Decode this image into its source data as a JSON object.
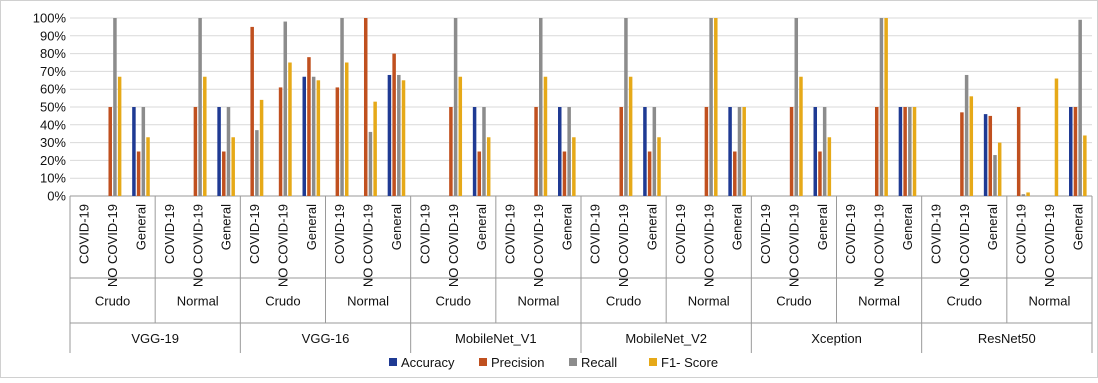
{
  "chart_data": {
    "type": "bar",
    "title": "",
    "xlabel": "",
    "ylabel": "",
    "ylim": [
      0,
      100
    ],
    "y_unit": "%",
    "y_ticks": [
      "0%",
      "10%",
      "20%",
      "30%",
      "40%",
      "50%",
      "60%",
      "70%",
      "80%",
      "90%",
      "100%"
    ],
    "grid": true,
    "legend_position": "bottom",
    "models": [
      "VGG-19",
      "VGG-16",
      "MobileNet_V1",
      "MobileNet_V2",
      "Xception",
      "ResNet50"
    ],
    "preprocessing": [
      "Crudo",
      "Normal"
    ],
    "classes": [
      "COVID-19",
      "NO COVID-19",
      "General"
    ],
    "categories": [
      "VGG-19 | Crudo | COVID-19",
      "VGG-19 | Crudo | NO COVID-19",
      "VGG-19 | Crudo | General",
      "VGG-19 | Normal | COVID-19",
      "VGG-19 | Normal | NO COVID-19",
      "VGG-19 | Normal | General",
      "VGG-16 | Crudo | COVID-19",
      "VGG-16 | Crudo | NO COVID-19",
      "VGG-16 | Crudo | General",
      "VGG-16 | Normal | COVID-19",
      "VGG-16 | Normal | NO COVID-19",
      "VGG-16 | Normal | General",
      "MobileNet_V1 | Crudo | COVID-19",
      "MobileNet_V1 | Crudo | NO COVID-19",
      "MobileNet_V1 | Crudo | General",
      "MobileNet_V1 | Normal | COVID-19",
      "MobileNet_V1 | Normal | NO COVID-19",
      "MobileNet_V1 | Normal | General",
      "MobileNet_V2 | Crudo | COVID-19",
      "MobileNet_V2 | Crudo | NO COVID-19",
      "MobileNet_V2 | Crudo | General",
      "MobileNet_V2 | Normal | COVID-19",
      "MobileNet_V2 | Normal | NO COVID-19",
      "MobileNet_V2 | Normal | General",
      "Xception | Crudo | COVID-19",
      "Xception | Crudo | NO COVID-19",
      "Xception | Crudo | General",
      "Xception | Normal | COVID-19",
      "Xception | Normal | NO COVID-19",
      "Xception | Normal | General",
      "ResNet50 | Crudo | COVID-19",
      "ResNet50 | Crudo | NO COVID-19",
      "ResNet50 | Crudo | General",
      "ResNet50 | Normal | COVID-19",
      "ResNet50 | Normal | NO COVID-19",
      "ResNet50 | Normal | General"
    ],
    "series": [
      {
        "name": "Accuracy",
        "color": "#1f3a93",
        "values": [
          0,
          0,
          50,
          0,
          0,
          50,
          0,
          0,
          67,
          0,
          0,
          68,
          0,
          0,
          50,
          0,
          0,
          50,
          0,
          0,
          50,
          0,
          0,
          50,
          0,
          0,
          50,
          0,
          0,
          50,
          0,
          0,
          46,
          0,
          0,
          50
        ]
      },
      {
        "name": "Precision",
        "color": "#c0501f",
        "values": [
          0,
          50,
          25,
          0,
          50,
          25,
          95,
          61,
          78,
          61,
          100,
          80,
          0,
          50,
          25,
          0,
          50,
          25,
          0,
          50,
          25,
          0,
          50,
          25,
          0,
          50,
          25,
          0,
          50,
          50,
          0,
          47,
          45,
          50,
          0,
          50
        ]
      },
      {
        "name": "Recall",
        "color": "#8c8c8c",
        "values": [
          0,
          100,
          50,
          0,
          100,
          50,
          37,
          98,
          67,
          100,
          36,
          68,
          0,
          100,
          50,
          0,
          100,
          50,
          0,
          100,
          50,
          0,
          100,
          50,
          0,
          100,
          50,
          0,
          100,
          50,
          0,
          68,
          23,
          1,
          0,
          99
        ]
      },
      {
        "name": "F1- Score",
        "color": "#e6a918",
        "values": [
          0,
          67,
          33,
          0,
          67,
          33,
          54,
          75,
          65,
          75,
          53,
          65,
          0,
          67,
          33,
          0,
          67,
          33,
          0,
          67,
          33,
          0,
          100,
          50,
          0,
          67,
          33,
          0,
          100,
          50,
          0,
          56,
          30,
          2,
          66,
          34
        ]
      }
    ]
  }
}
